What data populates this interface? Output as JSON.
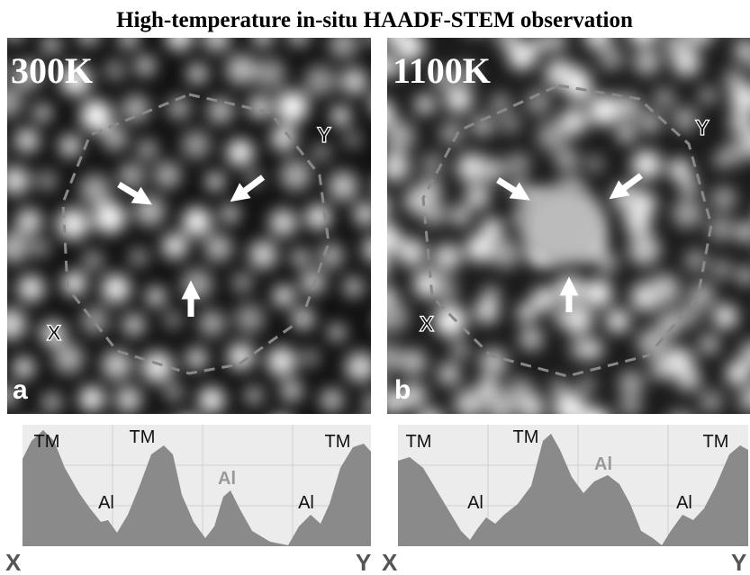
{
  "header": {
    "title": "High-temperature in-situ HAADF-STEM observation"
  },
  "panels": [
    {
      "temperature": "300K",
      "letter": "a",
      "point_x": "X",
      "point_y": "Y",
      "profile_labels": [
        "TM",
        "Al",
        "TM",
        "Al",
        "Al",
        "TM"
      ],
      "axis_start": "X",
      "axis_end": "Y"
    },
    {
      "temperature": "1100K",
      "letter": "b",
      "point_x": "X",
      "point_y": "Y",
      "profile_labels": [
        "TM",
        "Al",
        "TM",
        "Al",
        "Al",
        "TM"
      ],
      "axis_start": "X",
      "axis_end": "Y"
    }
  ]
}
